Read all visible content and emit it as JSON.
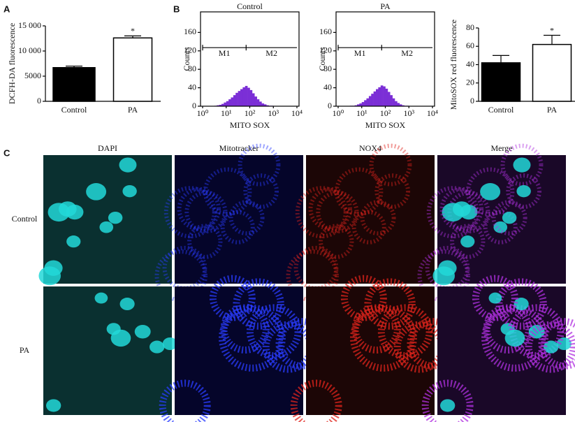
{
  "chart_data": [
    {
      "type": "bar",
      "panel": "A",
      "ylabel": "DCFH-DA fluorescence",
      "categories": [
        "Control",
        "PA"
      ],
      "values": [
        6700,
        12600
      ],
      "errors": [
        300,
        400
      ],
      "colors": [
        "#000000",
        "#ffffff"
      ],
      "significance": [
        null,
        "*"
      ],
      "ylim": [
        0,
        15000
      ],
      "yticks": [
        0,
        5000,
        {
          "value": 10000,
          "label": "10 000"
        },
        {
          "value": 15000,
          "label": "15 000"
        }
      ]
    },
    {
      "type": "histogram",
      "panel": "B",
      "title": "Control",
      "xlabel": "MITO SOX",
      "ylabel": "Counts",
      "xscale": "log",
      "color": "#7b2fd6",
      "bins": [
        3.16,
        3.98,
        5.01,
        6.31,
        7.94,
        10,
        12.6,
        15.8,
        20,
        25.1,
        31.6,
        39.8,
        50.1,
        63.1,
        79.4,
        100,
        126,
        158,
        200,
        251,
        316,
        398,
        501,
        631,
        794,
        1000,
        1259
      ],
      "counts": [
        1,
        2,
        3,
        5,
        8,
        11,
        15,
        19,
        24,
        29,
        33,
        37,
        41,
        44,
        40,
        35,
        28,
        21,
        15,
        10,
        6,
        4,
        2,
        1,
        1,
        0
      ],
      "gates": [
        {
          "label": "M1",
          "range": [
            1,
            70
          ]
        },
        {
          "label": "M2",
          "range": [
            70,
            10000
          ]
        }
      ],
      "gate_y": 127,
      "xlim": [
        1,
        10000
      ],
      "xticks": [
        {
          "value": 1,
          "label": "10⁰"
        },
        {
          "value": 10,
          "label": "10¹"
        },
        {
          "value": 100,
          "label": "10²"
        },
        {
          "value": 1000,
          "label": "10³"
        },
        {
          "value": 10000,
          "label": "10⁴"
        }
      ],
      "ylim": [
        0,
        200
      ],
      "yticks": [
        0,
        40,
        80,
        120,
        160
      ]
    },
    {
      "type": "histogram",
      "title": "PA",
      "xlabel": "MITO SOX",
      "ylabel": "Counts",
      "xscale": "log",
      "color": "#7b2fd6",
      "bins": [
        3.16,
        3.98,
        5.01,
        6.31,
        7.94,
        10,
        12.6,
        15.8,
        20,
        25.1,
        31.6,
        39.8,
        50.1,
        63.1,
        79.4,
        100,
        126,
        158,
        200,
        251,
        316,
        398,
        501,
        631,
        794,
        1000,
        1259
      ],
      "counts": [
        1,
        1,
        2,
        4,
        6,
        9,
        13,
        17,
        22,
        27,
        32,
        37,
        41,
        45,
        43,
        38,
        31,
        24,
        17,
        11,
        7,
        4,
        2,
        1,
        1,
        0
      ],
      "gates": [
        {
          "label": "M1",
          "range": [
            1,
            70
          ]
        },
        {
          "label": "M2",
          "range": [
            70,
            10000
          ]
        }
      ],
      "gate_y": 127,
      "xlim": [
        1,
        10000
      ],
      "xticks": [
        {
          "value": 1,
          "label": "10⁰"
        },
        {
          "value": 10,
          "label": "10¹"
        },
        {
          "value": 100,
          "label": "10²"
        },
        {
          "value": 1000,
          "label": "10³"
        },
        {
          "value": 10000,
          "label": "10⁴"
        }
      ],
      "ylim": [
        0,
        200
      ],
      "yticks": [
        0,
        40,
        80,
        120,
        160
      ]
    },
    {
      "type": "bar",
      "ylabel": "MitoSOX red fluorescence",
      "categories": [
        "Control",
        "PA"
      ],
      "values": [
        42,
        62
      ],
      "errors": [
        8,
        10
      ],
      "colors": [
        "#000000",
        "#ffffff"
      ],
      "significance": [
        null,
        "*"
      ],
      "ylim": [
        0,
        80
      ],
      "yticks": [
        0,
        20,
        40,
        60,
        80
      ]
    }
  ],
  "images": {
    "panel": "C",
    "columns": [
      "DAPI",
      "Mitotracker",
      "NOX4",
      "Merge"
    ],
    "rows": [
      "Control",
      "PA"
    ]
  }
}
